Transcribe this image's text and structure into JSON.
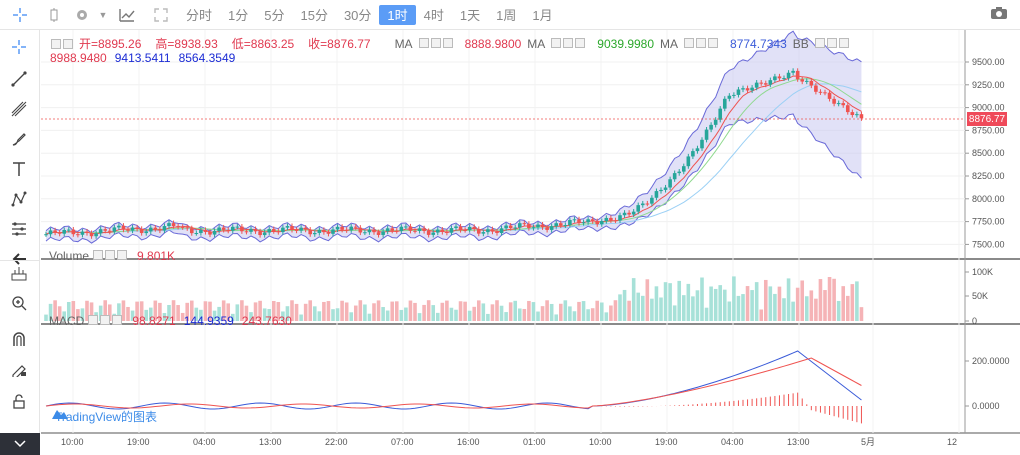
{
  "toolbar": {
    "timeframes": [
      "分时",
      "1分",
      "5分",
      "15分",
      "30分",
      "1时",
      "4时",
      "1天",
      "1周",
      "1月"
    ],
    "active_timeframe": "1时"
  },
  "ohlc": {
    "open": "开=8895.26",
    "high": "高=8938.93",
    "low": "低=8863.25",
    "close": "收=8876.77"
  },
  "ma": [
    {
      "label": "MA",
      "value": "8888.9800",
      "color": "#e0394f"
    },
    {
      "label": "MA",
      "value": "9039.9980",
      "color": "#2ba82b"
    },
    {
      "label": "MA",
      "value": "8774.7343",
      "color": "#3a5bd8"
    }
  ],
  "bb": {
    "label": "BB",
    "values": [
      "8988.9480",
      "9413.5411",
      "8564.3549"
    ]
  },
  "volume": {
    "label": "Volume",
    "value": "9.801K"
  },
  "macd": {
    "label": "MACD",
    "values": [
      "98.8271",
      "144.9359",
      "243.7630"
    ]
  },
  "price_axis": [
    "9500.00",
    "9250.00",
    "9000.00",
    "8750.00",
    "8500.00",
    "8250.00",
    "8000.00",
    "7750.00",
    "7500.00"
  ],
  "last_price": "8876.77",
  "volume_axis": [
    "100K",
    "50K",
    "0"
  ],
  "macd_axis": [
    "200.0000",
    "0.0000"
  ],
  "time_axis": [
    "10:00",
    "19:00",
    "04:00",
    "13:00",
    "22:00",
    "07:00",
    "16:00",
    "01:00",
    "10:00",
    "19:00",
    "04:00",
    "13:00",
    "5月",
    "12"
  ],
  "watermark": "TradingView的图表",
  "colors": {
    "up": "#26a69a",
    "down": "#ef5350",
    "bb_fill": "#c9c9f0",
    "bb_line": "#6a6ad8",
    "accent": "#5b9cf6"
  }
}
